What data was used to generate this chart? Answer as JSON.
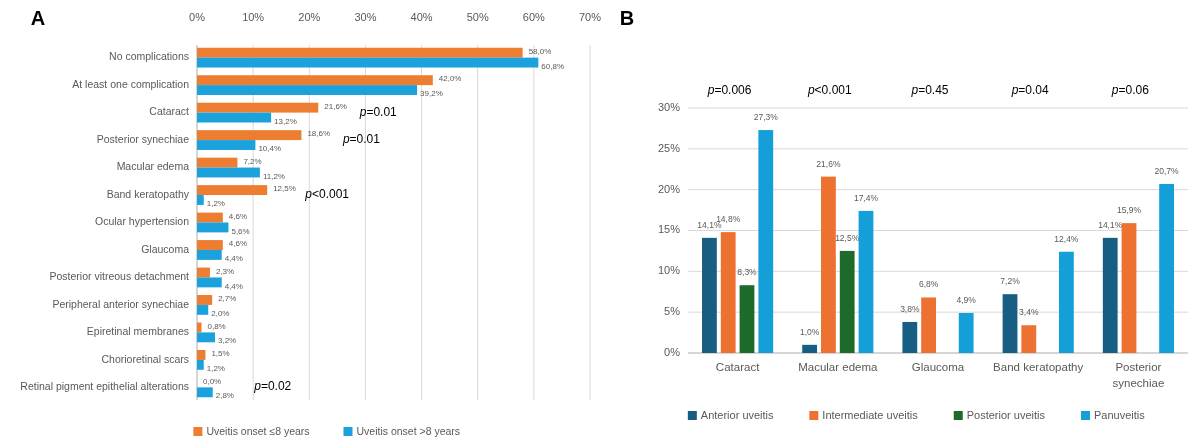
{
  "chart_data": [
    {
      "type": "bar",
      "title": "A",
      "orientation": "horizontal",
      "categories": [
        "No complications",
        "At least one complication",
        "Cataract",
        "Posterior synechiae",
        "Macular edema",
        "Band keratopathy",
        "Ocular hypertension",
        "Glaucoma",
        "Posterior vitreous detachment",
        "Peripheral anterior synechiae",
        "Epiretinal membranes",
        "Chorioretinal scars",
        "Retinal pigment epithelial alterations"
      ],
      "series": [
        {
          "name": "Uveitis onset ≤8 years",
          "color": "#ed7d31",
          "values": [
            58.0,
            42.0,
            21.6,
            18.6,
            7.2,
            12.5,
            4.6,
            4.6,
            2.3,
            2.7,
            0.8,
            1.5,
            0.0
          ],
          "value_labels": [
            "58,0%",
            "42,0%",
            "21,6%",
            "18,6%",
            "7,2%",
            "12,5%",
            "4,6%",
            "4,6%",
            "2,3%",
            "2,7%",
            "0,8%",
            "1,5%",
            "0,0%"
          ]
        },
        {
          "name": "Uveitis onset >8 years",
          "color": "#1ba1dc",
          "values": [
            60.8,
            39.2,
            13.2,
            10.4,
            11.2,
            1.2,
            5.6,
            4.4,
            4.4,
            2.0,
            3.2,
            1.2,
            2.8
          ],
          "value_labels": [
            "60,8%",
            "39,2%",
            "13,2%",
            "10,4%",
            "11,2%",
            "1,2%",
            "5,6%",
            "4,4%",
            "4,4%",
            "2,0%",
            "3,2%",
            "1,2%",
            "2,8%"
          ]
        }
      ],
      "xlim": [
        0,
        70
      ],
      "xticks": [
        {
          "value": 0,
          "label": "0%"
        },
        {
          "value": 10,
          "label": "10%"
        },
        {
          "value": 20,
          "label": "20%"
        },
        {
          "value": 30,
          "label": "30%"
        },
        {
          "value": 40,
          "label": "40%"
        },
        {
          "value": 50,
          "label": "50%"
        },
        {
          "value": 60,
          "label": "60%"
        },
        {
          "value": 70,
          "label": "70%"
        }
      ],
      "grid": "x",
      "legend": "bottom",
      "annotations": [
        "p=0.01",
        "p=0.01",
        "p<0.001",
        "p=0.02"
      ]
    },
    {
      "type": "bar",
      "title": "B",
      "categories": [
        "Cataract",
        "Macular edema",
        "Glaucoma",
        "Band keratopathy",
        "Posterior synechiae"
      ],
      "series": [
        {
          "name": "Anterior uveitis",
          "color": "#175e82",
          "values": [
            14.1,
            1.0,
            3.8,
            7.2,
            14.1
          ],
          "value_labels": [
            "14,1%",
            "1,0%",
            "3,8%",
            "7,2%",
            "14,1%"
          ]
        },
        {
          "name": "Intermediate uveitis",
          "color": "#ed7130",
          "values": [
            14.8,
            21.6,
            6.8,
            3.4,
            15.9
          ],
          "value_labels": [
            "14,8%",
            "21,6%",
            "6,8%",
            "3,4%",
            "15,9%"
          ]
        },
        {
          "name": "Posterior uveitis",
          "color": "#1d6b2b",
          "values": [
            8.3,
            12.5,
            null,
            null,
            null
          ],
          "value_labels": [
            "8,3%",
            "12,5%",
            null,
            null,
            null
          ]
        },
        {
          "name": "Panuveitis",
          "color": "#159fd8",
          "values": [
            27.3,
            17.4,
            4.9,
            12.4,
            20.7
          ],
          "value_labels": [
            "27,3%",
            "17,4%",
            "4,9%",
            "12,4%",
            "20,7%"
          ]
        }
      ],
      "ylim": [
        0,
        30
      ],
      "yticks": [
        {
          "value": 0,
          "label": "0%"
        },
        {
          "value": 5,
          "label": "5%"
        },
        {
          "value": 10,
          "label": "10%"
        },
        {
          "value": 15,
          "label": "15%"
        },
        {
          "value": 20,
          "label": "20%"
        },
        {
          "value": 25,
          "label": "25%"
        },
        {
          "value": 30,
          "label": "30%"
        }
      ],
      "grid": "y",
      "legend": "bottom",
      "annotations": [
        "p=0.006",
        "p<0.001",
        "p=0.45",
        "p=0.04",
        "p=0.06"
      ]
    }
  ]
}
